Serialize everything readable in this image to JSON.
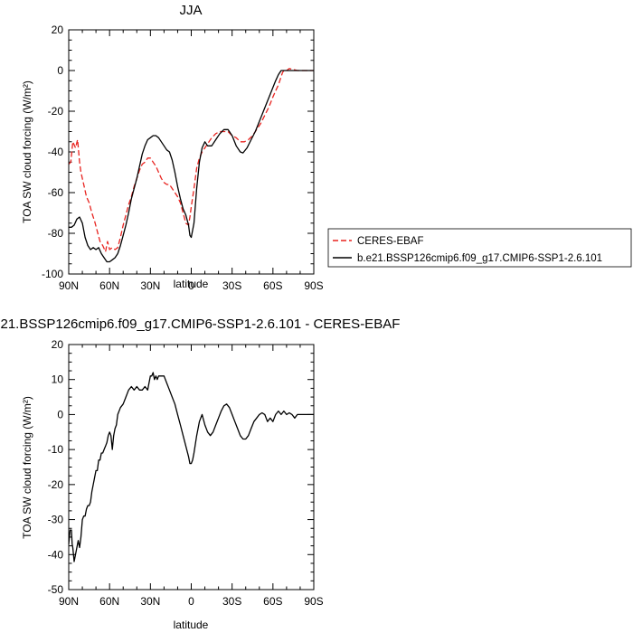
{
  "figure": {
    "background": "#ffffff"
  },
  "chart_data": [
    {
      "type": "line",
      "title": "JJA",
      "xlabel": "latitude",
      "ylabel": "TOA SW cloud forcing (W/m²)",
      "xlim": [
        90,
        -90
      ],
      "ylim": [
        -100,
        20
      ],
      "xticks": [
        {
          "value": 90,
          "label": "90N"
        },
        {
          "value": 60,
          "label": "60N"
        },
        {
          "value": 30,
          "label": "30N"
        },
        {
          "value": 0,
          "label": "0"
        },
        {
          "value": -30,
          "label": "30S"
        },
        {
          "value": -60,
          "label": "60S"
        },
        {
          "value": -90,
          "label": "90S"
        }
      ],
      "yticks": [
        20,
        0,
        -20,
        -40,
        -60,
        -80,
        -100
      ],
      "legend_position": "right-outside",
      "series": [
        {
          "name": "CERES-EBAF",
          "color": "#e8231f",
          "dash": "dashed",
          "x": [
            90,
            88.5,
            87,
            85,
            83.5,
            82,
            81,
            79,
            77,
            75,
            73,
            71,
            69,
            67,
            65,
            63,
            61.5,
            60,
            58,
            56,
            54,
            52,
            50,
            48,
            46,
            44,
            42,
            40,
            38,
            36,
            34,
            32,
            30,
            28,
            26,
            24,
            22,
            20,
            18,
            16,
            14,
            12,
            10,
            8,
            6,
            4,
            2,
            1,
            0,
            -2,
            -4,
            -6,
            -8,
            -10,
            -12,
            -15,
            -18,
            -21,
            -24,
            -27,
            -30,
            -33,
            -36,
            -39,
            -42,
            -45,
            -48,
            -51,
            -54,
            -57,
            -60,
            -62,
            -64,
            -66,
            -67,
            -68,
            -69,
            -70,
            -72,
            -75,
            -78,
            -80,
            -83,
            -86,
            -90
          ],
          "y": [
            -46,
            -45,
            -35,
            -38,
            -34,
            -45,
            -50,
            -56,
            -62,
            -65,
            -70,
            -74,
            -79,
            -84,
            -86,
            -89,
            -84,
            -88,
            -87,
            -88,
            -87,
            -82,
            -76,
            -71,
            -66,
            -62,
            -57,
            -53,
            -49,
            -46,
            -45,
            -43,
            -43,
            -45,
            -47,
            -50,
            -53,
            -55,
            -56,
            -56,
            -58,
            -60,
            -62,
            -65,
            -70,
            -75,
            -76,
            -72,
            -67,
            -58,
            -48,
            -43,
            -40,
            -38,
            -36,
            -33,
            -31,
            -30,
            -30,
            -30,
            -32,
            -33,
            -35,
            -35,
            -34,
            -32,
            -29,
            -26,
            -22,
            -18,
            -13,
            -10,
            -7,
            -3,
            -1,
            0,
            0,
            0,
            1,
            0.5,
            0,
            0,
            0,
            0,
            0
          ]
        },
        {
          "name": "b.e21.BSSP126cmip6.f09_g17.CMIP6-SSP1-2.6.101",
          "color": "#000000",
          "dash": "solid",
          "x": [
            90,
            88,
            86,
            84,
            82,
            80,
            78,
            76,
            74,
            72,
            70,
            68,
            66,
            64,
            62,
            60,
            58,
            56,
            54,
            52,
            50,
            48,
            46,
            44,
            42,
            40,
            38,
            36,
            34,
            32,
            30,
            28,
            26,
            24,
            22,
            20,
            18,
            16,
            14,
            12,
            10,
            8,
            6,
            4,
            2,
            1,
            0,
            -2,
            -4,
            -6,
            -8,
            -10,
            -12,
            -15,
            -18,
            -21,
            -24,
            -27,
            -30,
            -33,
            -36,
            -38,
            -41,
            -44,
            -47,
            -50,
            -53,
            -56,
            -59,
            -62,
            -64,
            -66,
            -67,
            -68,
            -70,
            -72,
            -75,
            -78,
            -81,
            -84,
            -87,
            -90
          ],
          "y": [
            -77,
            -77,
            -76,
            -73,
            -72,
            -75,
            -82,
            -86,
            -88,
            -87,
            -88,
            -87,
            -90,
            -92,
            -94,
            -94,
            -93,
            -92,
            -90,
            -86,
            -81,
            -76,
            -70,
            -63,
            -58,
            -53,
            -47,
            -41,
            -37,
            -34,
            -33,
            -32,
            -32,
            -33,
            -35,
            -37,
            -39,
            -40,
            -44,
            -50,
            -57,
            -63,
            -68,
            -71,
            -76,
            -81,
            -82,
            -75,
            -58,
            -45,
            -38,
            -35,
            -37,
            -37,
            -34,
            -31,
            -29,
            -29,
            -32,
            -37,
            -40,
            -40.5,
            -38,
            -34,
            -30,
            -25,
            -20,
            -15,
            -10,
            -5,
            -2,
            0,
            0,
            0,
            0,
            0,
            0,
            0,
            0,
            0,
            0,
            0
          ]
        }
      ]
    },
    {
      "type": "line",
      "title": "b.e21.BSSP126cmip6.f09_g17.CMIP6-SSP1-2.6.101 - CERES-EBAF",
      "xlabel": "latitude",
      "ylabel": "TOA SW cloud forcing (W/m²)",
      "xlim": [
        90,
        -90
      ],
      "ylim": [
        -50,
        20
      ],
      "xticks": [
        {
          "value": 90,
          "label": "90N"
        },
        {
          "value": 60,
          "label": "60N"
        },
        {
          "value": 30,
          "label": "30N"
        },
        {
          "value": 0,
          "label": "0"
        },
        {
          "value": -30,
          "label": "30S"
        },
        {
          "value": -60,
          "label": "60S"
        },
        {
          "value": -90,
          "label": "90S"
        }
      ],
      "yticks": [
        20,
        10,
        0,
        -10,
        -20,
        -30,
        -40,
        -50
      ],
      "series": [
        {
          "color": "#000000",
          "dash": "solid",
          "x": [
            90,
            89,
            88,
            87.5,
            87,
            86,
            85,
            84,
            83,
            82,
            81,
            80,
            79,
            78,
            77,
            76,
            75,
            74,
            73,
            72,
            71,
            70,
            69,
            68,
            67,
            66,
            65,
            64,
            63,
            62,
            61,
            60,
            59,
            58,
            57,
            56,
            55,
            54,
            52,
            50,
            48,
            46,
            44,
            42,
            40,
            38,
            36,
            34,
            32,
            30,
            29,
            28,
            27,
            26,
            25,
            24,
            22,
            20,
            18,
            16,
            14,
            12,
            10,
            8,
            6,
            4,
            2,
            1,
            0,
            -1,
            -2,
            -4,
            -6,
            -8,
            -10,
            -12,
            -14,
            -16,
            -18,
            -20,
            -22,
            -24,
            -26,
            -28,
            -30,
            -32,
            -34,
            -36,
            -38,
            -40,
            -42,
            -44,
            -46,
            -48,
            -50,
            -52,
            -54,
            -56,
            -58,
            -60,
            -62,
            -64,
            -66,
            -68,
            -70,
            -72,
            -74,
            -76,
            -78,
            -80,
            -82,
            -84,
            -86,
            -88,
            -90
          ],
          "y": [
            -37,
            -33,
            -33,
            -37,
            -38,
            -42,
            -40,
            -38,
            -36,
            -38,
            -35,
            -30,
            -29,
            -29,
            -27,
            -26,
            -26,
            -25,
            -22,
            -20,
            -18,
            -16,
            -16,
            -13,
            -13,
            -11,
            -11,
            -10,
            -9,
            -8,
            -6,
            -5,
            -6,
            -10,
            -6,
            -4,
            -3,
            0,
            2,
            3,
            5,
            7,
            8,
            7,
            8,
            7,
            7,
            8,
            7,
            11,
            11,
            12,
            10,
            11,
            10,
            11,
            11,
            11,
            9,
            7,
            5,
            3,
            0,
            -3,
            -6,
            -9,
            -12,
            -14,
            -14,
            -13,
            -11,
            -6,
            -2,
            0,
            -3,
            -5,
            -6,
            -5,
            -3,
            -1,
            1,
            2.5,
            3,
            2,
            0,
            -2,
            -4,
            -6,
            -7,
            -7,
            -6,
            -4,
            -2,
            -1,
            0,
            0.5,
            0,
            -2,
            -1,
            -2,
            0,
            1,
            0,
            1,
            0,
            0.5,
            0,
            -1,
            0,
            0,
            0,
            0,
            0,
            0,
            0
          ]
        }
      ]
    }
  ]
}
